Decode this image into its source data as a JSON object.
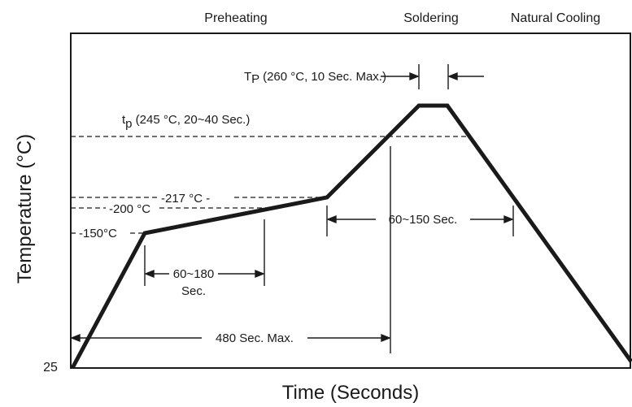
{
  "phases": {
    "preheating": "Preheating",
    "soldering": "Soldering",
    "natural_cooling": "Natural Cooling"
  },
  "axes": {
    "y_title": "Temperature (°C)",
    "x_title": "Time (Seconds)",
    "y_origin_label": "25"
  },
  "annotations": {
    "tp_peak": "T",
    "tp_peak_sub": "P",
    "tp_peak_rest": " (260 °C, 10 Sec. Max.)",
    "tp_time": "t",
    "tp_time_sub": "p",
    "tp_time_rest": " (245 °C, 20~40 Sec.)",
    "t217": "217 °C",
    "t200": "200 °C",
    "t150": "150°C",
    "dur_60_180_line1": "60~180",
    "dur_60_180_line2": "Sec.",
    "dur_60_150": "60~150 Sec.",
    "dur_480": "480 Sec. Max."
  },
  "profile": {
    "start_temp": 25,
    "preheat_start_temp": 150,
    "liquidus_temp": 217,
    "tp_temp": 245,
    "peak_temp": 260,
    "colors": {
      "profile": "#1a1a1a",
      "guides": "#1a1a1a"
    }
  }
}
